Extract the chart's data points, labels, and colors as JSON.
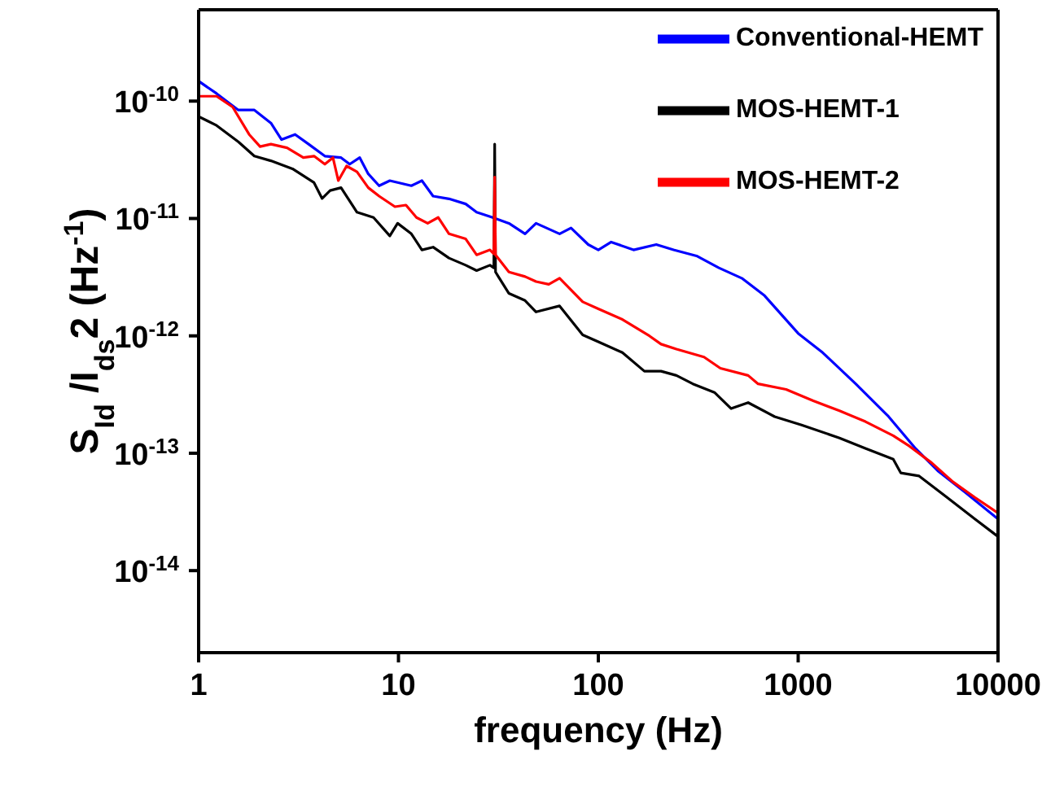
{
  "chart_data": {
    "type": "line",
    "xlabel": "frequency (Hz)",
    "ylabel": "S$_{Id}$ /I$_{ds}$2 (Hz$^{-1}$)",
    "log": "xy",
    "legend": "top right",
    "marker": "none",
    "line_style": "solid",
    "xlim": [
      1,
      10000
    ],
    "xticks": [
      1,
      10,
      100,
      1000,
      10000
    ],
    "ylim": [
      2e-15,
      6e-10
    ],
    "yticks": [
      {
        "value": 1e-14,
        "label": "10$^{-14}$"
      },
      {
        "value": 1e-13,
        "label": "10$^{-13}$"
      },
      {
        "value": 1e-12,
        "label": "10$^{-12}$"
      },
      {
        "value": 1e-11,
        "label": "10$^{-11}$"
      },
      {
        "value": 1e-10,
        "label": "10$^{-10}$"
      }
    ],
    "series": [
      {
        "name": "Conventional-HEMT",
        "color": "#0000ff",
        "x": [
          1,
          1.23,
          1.58,
          1.9,
          2.3,
          2.6,
          3.04,
          3.55,
          4.28,
          5.16,
          5.7,
          6.4,
          7.06,
          8,
          9.05,
          11.6,
          13.1,
          14.9,
          17.9,
          21.7,
          24.6,
          29.6,
          35.7,
          43,
          48.8,
          64,
          73,
          89,
          100,
          116,
          150,
          195,
          238,
          310,
          401,
          522,
          679,
          1000,
          1326,
          1940,
          2830,
          3860,
          4990,
          6790,
          10000
        ],
        "values": [
          1.48e-10,
          1.16e-10,
          8.4e-11,
          8.4e-11,
          6.5e-11,
          4.7e-11,
          5.2e-11,
          4.3e-11,
          3.4e-11,
          3.3e-11,
          2.9e-11,
          3.3e-11,
          2.4e-11,
          1.9e-11,
          2.1e-11,
          1.9e-11,
          2.1e-11,
          1.55e-11,
          1.47e-11,
          1.33e-11,
          1.13e-11,
          1.02e-11,
          9.1e-12,
          7.4e-12,
          9.1e-12,
          7.4e-12,
          8.3e-12,
          6e-12,
          5.4e-12,
          6.3e-12,
          5.4e-12,
          6e-12,
          5.4e-12,
          4.8e-12,
          3.8e-12,
          3.1e-12,
          2.2e-12,
          1.05e-12,
          7.2e-13,
          3.9e-13,
          2.06e-13,
          1.1e-13,
          7.1e-14,
          4.7e-14,
          2.75e-14
        ]
      },
      {
        "name": "MOS-HEMT-1",
        "color": "#000000",
        "x": [
          1,
          1.23,
          1.58,
          1.9,
          2.3,
          2.95,
          3.78,
          4.15,
          4.55,
          5.16,
          6.2,
          7.5,
          9.05,
          9.9,
          11.6,
          13.1,
          14.9,
          17.9,
          21.7,
          24.6,
          28.7,
          30,
          30.3,
          30.6,
          31.6,
          35.7,
          43,
          48.8,
          64,
          83.5,
          100,
          132,
          170,
          206,
          246,
          297,
          381,
          462,
          562,
          763,
          1040,
          1610,
          2170,
          2990,
          3260,
          4030,
          5560,
          7660,
          10000
        ],
        "values": [
          7.4e-11,
          6.2e-11,
          4.5e-11,
          3.4e-11,
          3.1e-11,
          2.65e-11,
          2.02e-11,
          1.48e-11,
          1.73e-11,
          1.83e-11,
          1.13e-11,
          1.02e-11,
          7.1e-12,
          9.1e-12,
          7.4e-12,
          5.4e-12,
          5.7e-12,
          4.6e-12,
          4e-12,
          3.6e-12,
          4e-12,
          3.8e-12,
          4.3e-11,
          3.5e-12,
          3.2e-12,
          2.3e-12,
          2e-12,
          1.6e-12,
          1.8e-12,
          1.02e-12,
          8.9e-13,
          7.2e-13,
          5e-13,
          5e-13,
          4.6e-13,
          3.9e-13,
          3.3e-13,
          2.4e-13,
          2.7e-13,
          2.05e-13,
          1.74e-13,
          1.35e-13,
          1.1e-13,
          8.9e-14,
          6.8e-14,
          6.4e-14,
          4.2e-14,
          2.75e-14,
          1.95e-14
        ]
      },
      {
        "name": "MOS-HEMT-2",
        "color": "#ff0000",
        "x": [
          1,
          1.23,
          1.48,
          1.79,
          2.03,
          2.3,
          2.77,
          3.34,
          3.78,
          4.28,
          4.7,
          5,
          5.5,
          6.2,
          7.06,
          8,
          9.6,
          10.9,
          12.3,
          14,
          15.8,
          17.9,
          21.7,
          24.6,
          28.7,
          30,
          30.3,
          30.6,
          35.7,
          43,
          48.8,
          56.5,
          64,
          83.5,
          100,
          132,
          180,
          206,
          246,
          338,
          408,
          562,
          630,
          870,
          1190,
          1610,
          2170,
          2990,
          3600,
          4650,
          5950,
          7660,
          10000
        ],
        "values": [
          1.1e-10,
          1.1e-10,
          8.9e-11,
          5.2e-11,
          4.1e-11,
          4.3e-11,
          4e-11,
          3.3e-11,
          3.4e-11,
          2.9e-11,
          3.3e-11,
          2.1e-11,
          2.8e-11,
          2.5e-11,
          1.83e-11,
          1.55e-11,
          1.26e-11,
          1.3e-11,
          1.02e-11,
          9.1e-12,
          1.02e-11,
          7.4e-12,
          6.7e-12,
          4.9e-12,
          5.4e-12,
          5e-12,
          2.25e-11,
          4.9e-12,
          3.5e-12,
          3.2e-12,
          2.9e-12,
          2.75e-12,
          3.1e-12,
          1.95e-12,
          1.7e-12,
          1.38e-12,
          1e-12,
          8.5e-13,
          7.7e-13,
          6.6e-13,
          5.3e-13,
          4.6e-13,
          3.9e-13,
          3.5e-13,
          2.8e-13,
          2.3e-13,
          1.86e-13,
          1.41e-13,
          1.15e-13,
          8.3e-14,
          5.7e-14,
          4.2e-14,
          3.1e-14
        ]
      }
    ]
  }
}
